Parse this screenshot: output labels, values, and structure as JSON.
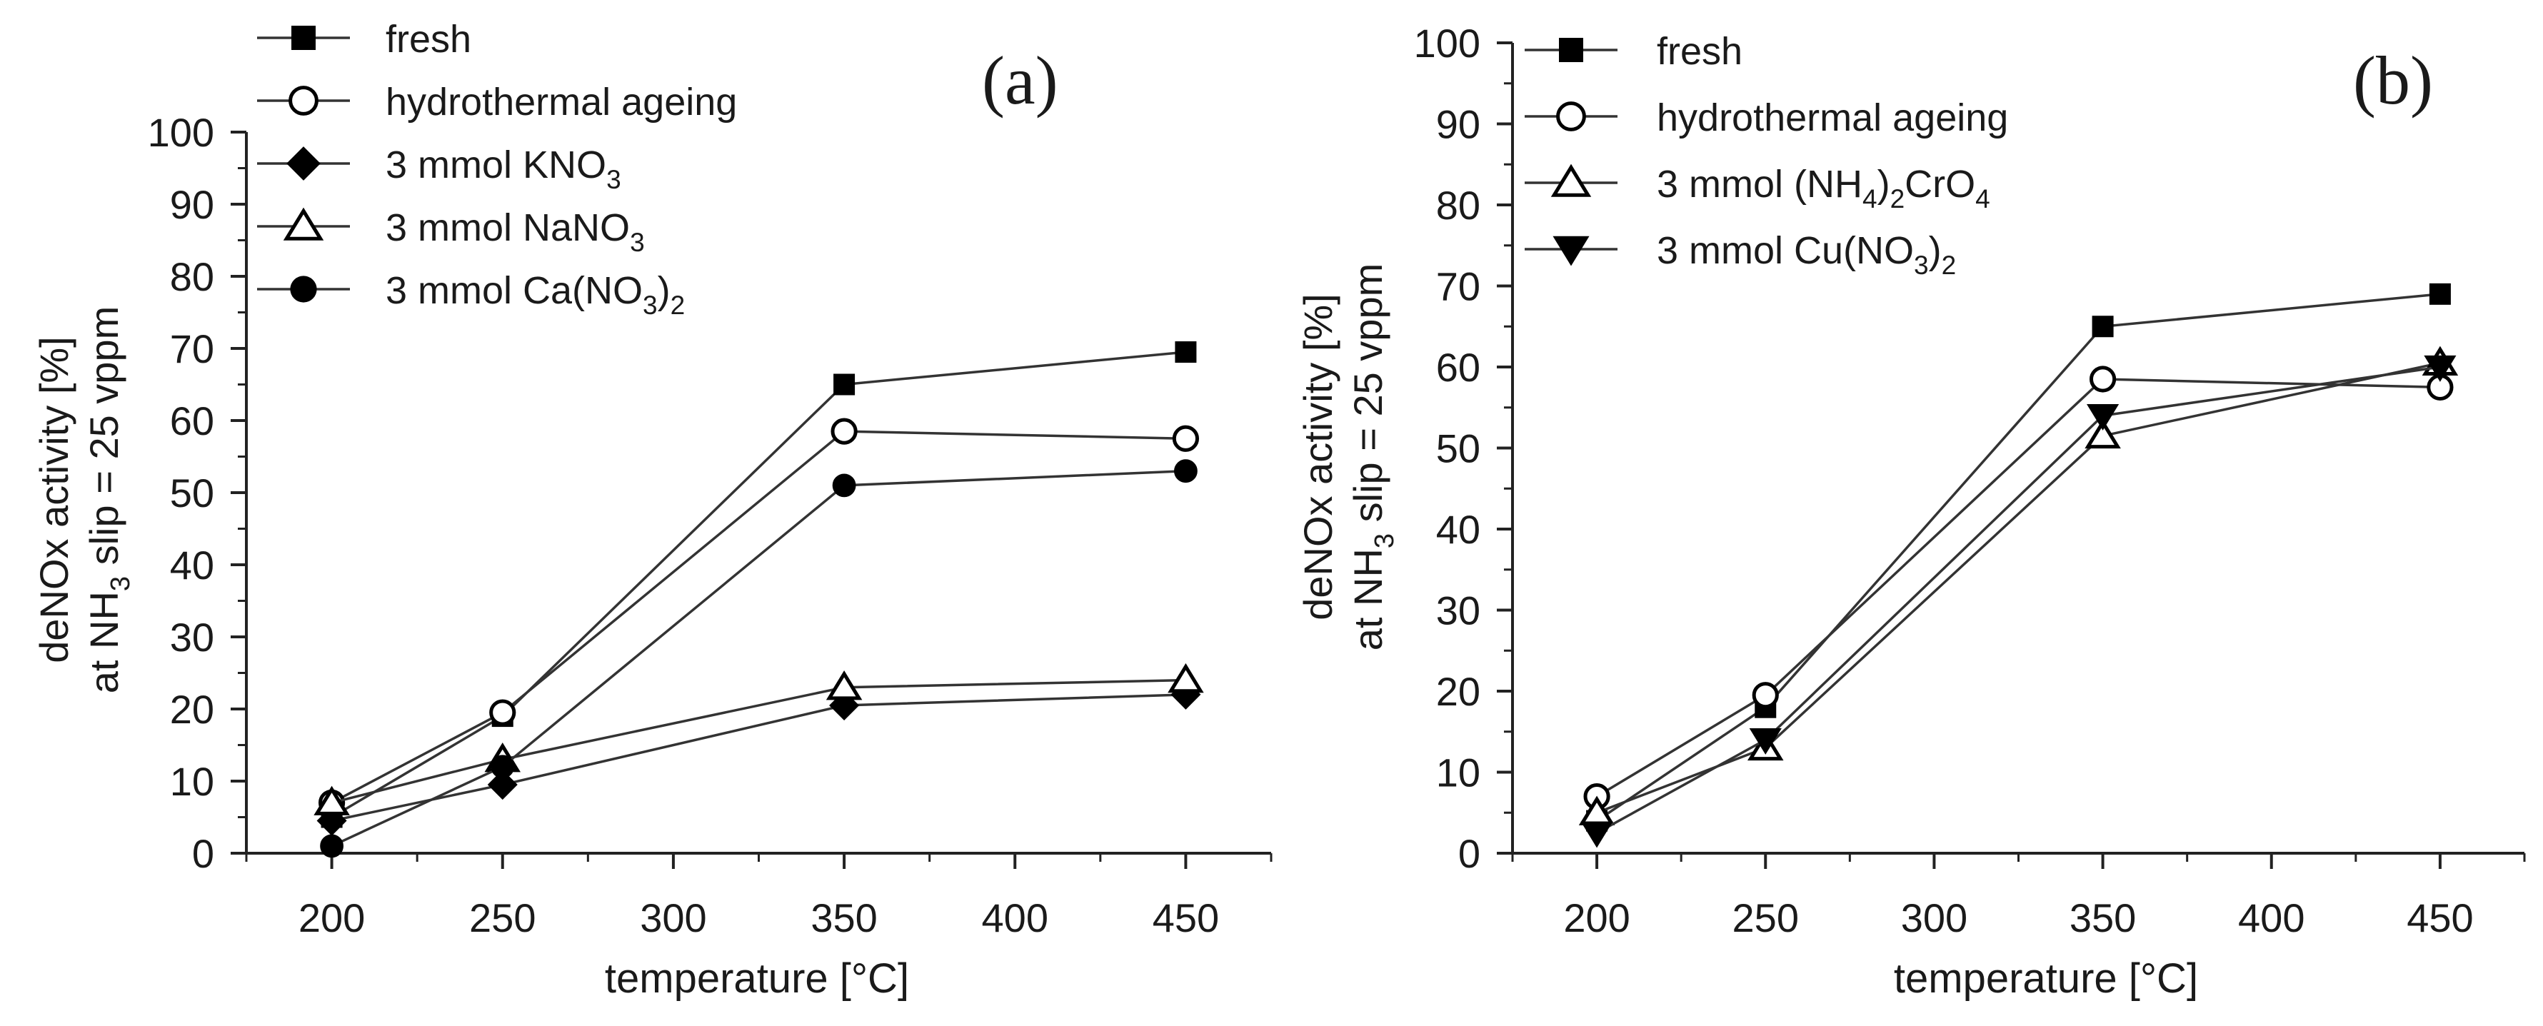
{
  "chart_data": [
    {
      "type": "line",
      "panel_label": "(a)",
      "xlabel": "temperature [°C]",
      "ylabel_line1": "deNOx activity [%]",
      "ylabel_line2_pre": "at NH",
      "ylabel_line2_sub": "3",
      "ylabel_line2_post": " slip = 25 vppm",
      "xlim": [
        175,
        475
      ],
      "ylim": [
        0,
        100
      ],
      "x_ticks": [
        200,
        250,
        300,
        350,
        400,
        450
      ],
      "x_tick_labels": [
        "200",
        "250",
        "300",
        "350",
        "400",
        "450"
      ],
      "y_ticks": [
        0,
        10,
        20,
        30,
        40,
        50,
        60,
        70,
        80,
        90,
        100
      ],
      "y_tick_labels": [
        "0",
        "10",
        "20",
        "30",
        "40",
        "50",
        "60",
        "70",
        "80",
        "90",
        "100"
      ],
      "series": [
        {
          "name": "fresh",
          "label": [
            {
              "t": "fresh"
            }
          ],
          "marker": "square-filled",
          "x": [
            200,
            250,
            350,
            450
          ],
          "values": [
            5,
            19,
            65,
            69.5
          ]
        },
        {
          "name": "hydrothermal ageing",
          "label": [
            {
              "t": "hydrothermal ageing"
            }
          ],
          "marker": "circle-open",
          "x": [
            200,
            250,
            350,
            450
          ],
          "values": [
            7,
            19.5,
            58.5,
            57.5
          ]
        },
        {
          "name": "3 mmol KNO3",
          "label": [
            {
              "t": "3 mmol KNO"
            },
            {
              "t": "3",
              "sub": true
            }
          ],
          "marker": "diamond-filled",
          "x": [
            200,
            250,
            350,
            450
          ],
          "values": [
            4.5,
            9.5,
            20.5,
            22
          ]
        },
        {
          "name": "3 mmol NaNO3",
          "label": [
            {
              "t": "3 mmol NaNO"
            },
            {
              "t": "3",
              "sub": true
            }
          ],
          "marker": "triangle-up-open",
          "x": [
            200,
            250,
            350,
            450
          ],
          "values": [
            7,
            13,
            23,
            24
          ]
        },
        {
          "name": "3 mmol Ca(NO3)2",
          "label": [
            {
              "t": "3 mmol Ca(NO"
            },
            {
              "t": "3",
              "sub": true
            },
            {
              "t": ")"
            },
            {
              "t": "2",
              "sub": true
            }
          ],
          "marker": "circle-filled",
          "x": [
            200,
            250,
            350,
            450
          ],
          "values": [
            1,
            12,
            51,
            53
          ]
        }
      ]
    },
    {
      "type": "line",
      "panel_label": "(b)",
      "xlabel": "temperature [°C]",
      "ylabel_line1": "deNOx activity [%]",
      "ylabel_line2_pre": "at NH",
      "ylabel_line2_sub": "3",
      "ylabel_line2_post": " slip = 25 vppm",
      "xlim": [
        175,
        475
      ],
      "ylim": [
        0,
        100
      ],
      "x_ticks": [
        200,
        250,
        300,
        350,
        400,
        450
      ],
      "x_tick_labels": [
        "200",
        "250",
        "300",
        "350",
        "400",
        "450"
      ],
      "y_ticks": [
        0,
        10,
        20,
        30,
        40,
        50,
        60,
        70,
        80,
        90,
        100
      ],
      "y_tick_labels": [
        "0",
        "10",
        "20",
        "30",
        "40",
        "50",
        "60",
        "70",
        "80",
        "90",
        "100"
      ],
      "series": [
        {
          "name": "fresh",
          "label": [
            {
              "t": "fresh"
            }
          ],
          "marker": "square-filled",
          "x": [
            200,
            250,
            350,
            450
          ],
          "values": [
            4,
            18,
            65,
            69
          ]
        },
        {
          "name": "hydrothermal ageing",
          "label": [
            {
              "t": "hydrothermal ageing"
            }
          ],
          "marker": "circle-open",
          "x": [
            200,
            250,
            350,
            450
          ],
          "values": [
            7,
            19.5,
            58.5,
            57.5
          ]
        },
        {
          "name": "3 mmol (NH4)2CrO4",
          "label": [
            {
              "t": "3 mmol (NH"
            },
            {
              "t": "4",
              "sub": true
            },
            {
              "t": ")"
            },
            {
              "t": "2",
              "sub": true
            },
            {
              "t": "CrO"
            },
            {
              "t": "4",
              "sub": true
            }
          ],
          "marker": "triangle-up-open",
          "x": [
            200,
            250,
            350,
            450
          ],
          "values": [
            5,
            13,
            51.5,
            60.5
          ]
        },
        {
          "name": "3 mmol Cu(NO3)2",
          "label": [
            {
              "t": "3 mmol Cu(NO"
            },
            {
              "t": "3",
              "sub": true
            },
            {
              "t": ")"
            },
            {
              "t": "2",
              "sub": true
            }
          ],
          "marker": "triangle-down-filled",
          "x": [
            200,
            250,
            350,
            450
          ],
          "values": [
            2.5,
            14,
            54,
            60
          ]
        }
      ]
    }
  ]
}
